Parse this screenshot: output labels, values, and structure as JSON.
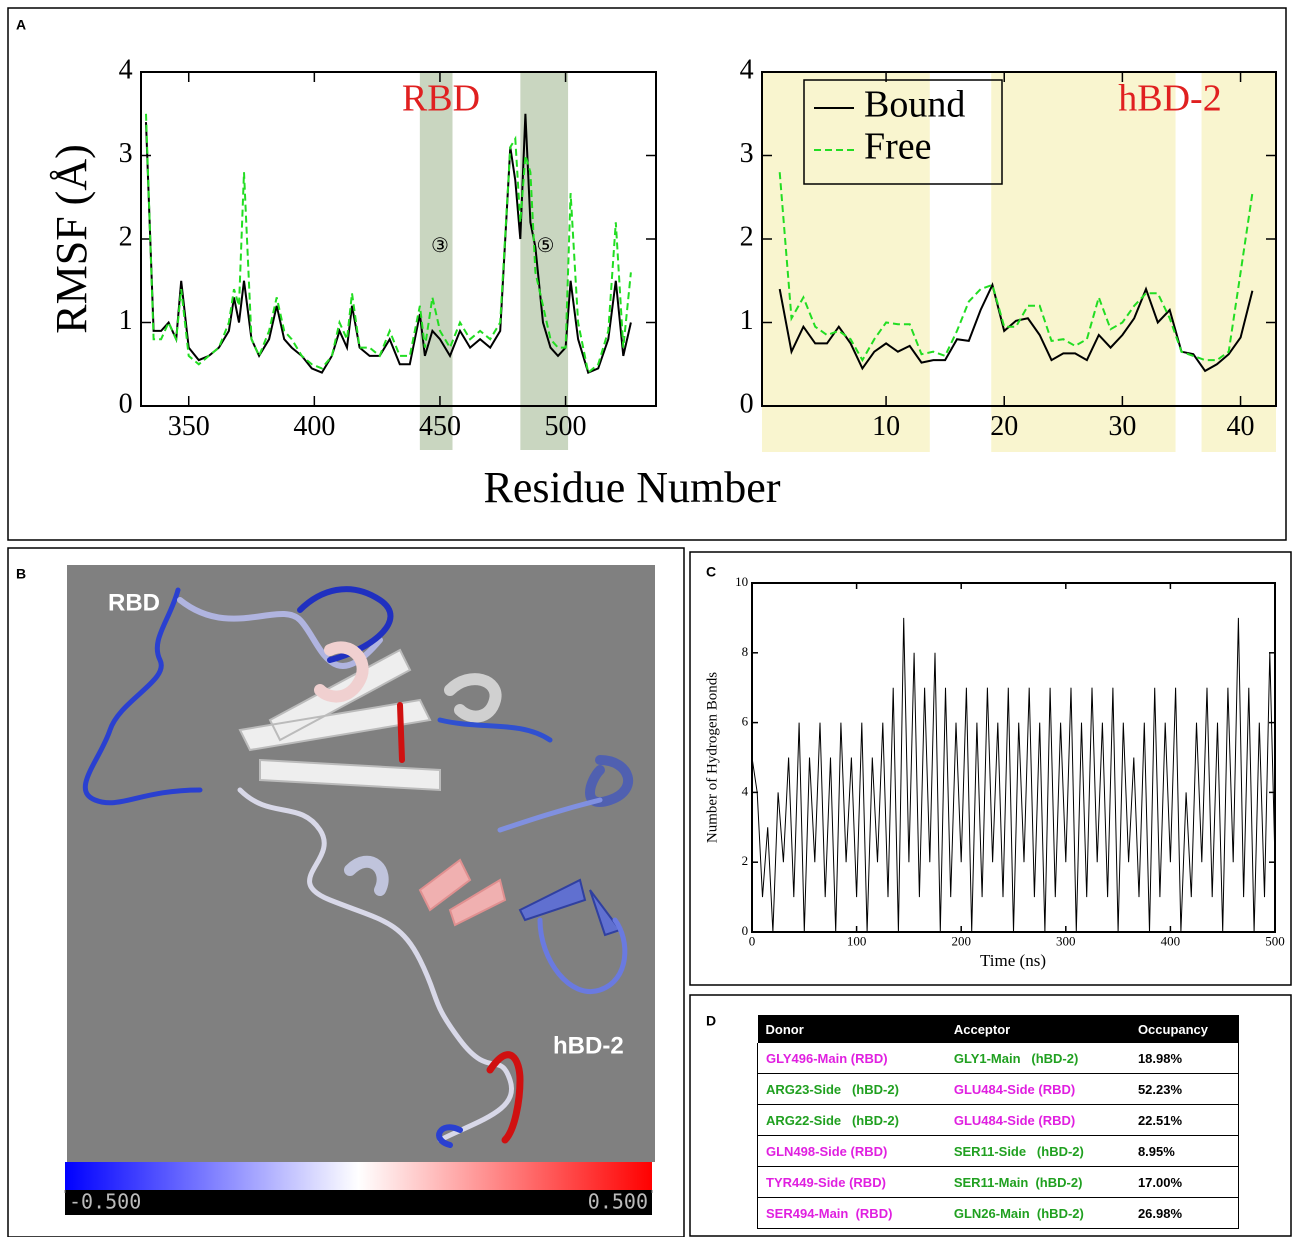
{
  "panel_labels": [
    "A",
    "B",
    "C",
    "D"
  ],
  "structure_labels": [
    "RBD",
    "hBD-2"
  ],
  "chart_data": [
    {
      "type": "line",
      "title": "RBD",
      "ylabel": "RMSF (Å)",
      "xlabel": "Residue Number",
      "x": [
        333,
        336,
        339,
        342,
        345,
        347,
        350,
        354,
        358,
        362,
        366,
        368,
        370,
        372,
        375,
        378,
        382,
        385,
        388,
        391,
        395,
        399,
        403,
        407,
        410,
        413,
        415,
        418,
        422,
        426,
        430,
        434,
        438,
        442,
        444,
        447,
        450,
        454,
        458,
        462,
        466,
        470,
        474,
        478,
        480,
        482,
        484,
        486,
        488,
        491,
        494,
        497,
        500,
        502,
        505,
        509,
        513,
        517,
        520,
        523,
        526
      ],
      "series": [
        {
          "name": "Bound",
          "color": "#000000",
          "dash": false,
          "values": [
            3.4,
            0.9,
            0.9,
            1.0,
            0.8,
            1.5,
            0.7,
            0.55,
            0.6,
            0.7,
            0.9,
            1.3,
            1.0,
            1.5,
            0.8,
            0.6,
            0.8,
            1.2,
            0.8,
            0.7,
            0.6,
            0.45,
            0.4,
            0.6,
            0.9,
            0.7,
            1.2,
            0.7,
            0.6,
            0.6,
            0.8,
            0.5,
            0.5,
            1.1,
            0.6,
            0.9,
            0.8,
            0.6,
            0.9,
            0.7,
            0.8,
            0.7,
            0.9,
            3.1,
            2.7,
            2.0,
            3.5,
            2.2,
            1.9,
            1.0,
            0.7,
            0.6,
            0.7,
            1.5,
            0.8,
            0.4,
            0.45,
            0.8,
            1.5,
            0.6,
            1.0
          ]
        },
        {
          "name": "Free",
          "color": "#22dd22",
          "dash": true,
          "values": [
            3.5,
            0.8,
            0.8,
            1.0,
            0.8,
            1.4,
            0.6,
            0.5,
            0.6,
            0.7,
            1.0,
            1.4,
            1.2,
            2.8,
            0.8,
            0.6,
            0.9,
            1.3,
            0.9,
            0.8,
            0.6,
            0.5,
            0.45,
            0.6,
            1.0,
            0.8,
            1.35,
            0.7,
            0.7,
            0.6,
            0.9,
            0.6,
            0.6,
            1.2,
            0.7,
            1.3,
            0.9,
            0.7,
            1.0,
            0.8,
            0.9,
            0.8,
            1.0,
            3.1,
            3.2,
            2.2,
            3.0,
            2.8,
            1.6,
            1.2,
            0.8,
            0.7,
            0.7,
            2.55,
            1.0,
            0.4,
            0.5,
            0.9,
            2.2,
            0.7,
            1.6
          ]
        }
      ],
      "xlim": [
        331,
        536
      ],
      "xticks": [
        350,
        400,
        450,
        500
      ],
      "ylim": [
        0,
        4
      ],
      "yticks": [
        0,
        1,
        2,
        3,
        4
      ],
      "grid": false,
      "shaded_regions": [
        [
          442,
          455
        ],
        [
          482,
          501
        ]
      ],
      "shade_color": "#c9d6c0",
      "annotations": [
        {
          "text": "③",
          "x": 450,
          "y": 1.9
        },
        {
          "text": "⑤",
          "x": 492,
          "y": 1.9
        }
      ]
    },
    {
      "type": "line",
      "title": "hBD-2",
      "x": [
        1,
        2,
        3,
        4,
        5,
        6,
        7,
        8,
        9,
        10,
        11,
        12,
        13,
        14,
        15,
        16,
        17,
        18,
        19,
        20,
        21,
        22,
        23,
        24,
        25,
        26,
        27,
        28,
        29,
        30,
        31,
        32,
        33,
        34,
        35,
        36,
        37,
        38,
        39,
        40,
        41
      ],
      "series": [
        {
          "name": "Bound",
          "color": "#000000",
          "dash": false,
          "values": [
            1.4,
            0.65,
            0.95,
            0.75,
            0.75,
            0.95,
            0.75,
            0.45,
            0.65,
            0.75,
            0.65,
            0.72,
            0.52,
            0.55,
            0.55,
            0.8,
            0.78,
            1.15,
            1.45,
            0.9,
            1.02,
            1.05,
            0.85,
            0.55,
            0.63,
            0.63,
            0.55,
            0.85,
            0.7,
            0.85,
            1.05,
            1.4,
            1.0,
            1.15,
            0.65,
            0.62,
            0.42,
            0.5,
            0.62,
            0.82,
            1.38
          ]
        },
        {
          "name": "Free",
          "color": "#22dd22",
          "dash": true,
          "values": [
            2.8,
            1.05,
            1.3,
            0.95,
            0.85,
            0.9,
            0.8,
            0.55,
            0.8,
            1.0,
            0.98,
            0.98,
            0.62,
            0.65,
            0.6,
            0.9,
            1.25,
            1.4,
            1.45,
            0.95,
            0.95,
            1.2,
            1.2,
            0.78,
            0.8,
            0.72,
            0.8,
            1.3,
            0.92,
            1.0,
            1.2,
            1.35,
            1.35,
            1.05,
            0.65,
            0.6,
            0.55,
            0.55,
            0.65,
            1.6,
            2.55
          ]
        }
      ],
      "xlim": [
        -0.5,
        43
      ],
      "xticks": [
        10,
        20,
        30,
        40
      ],
      "ylim": [
        0,
        4
      ],
      "yticks": [
        0,
        1,
        2,
        3,
        4
      ],
      "grid": false,
      "legend": "upper left",
      "shaded_regions": [
        [
          -0.5,
          13.7
        ],
        [
          18.9,
          34.5
        ],
        [
          36.7,
          43
        ]
      ],
      "shade_color": "#f9f5cf"
    },
    {
      "type": "line",
      "xlabel": "Time (ns)",
      "ylabel": "Number of Hydrogen Bonds",
      "x": [
        0,
        5,
        10,
        15,
        20,
        25,
        30,
        35,
        40,
        45,
        50,
        55,
        60,
        65,
        70,
        75,
        80,
        85,
        90,
        95,
        100,
        105,
        110,
        115,
        120,
        125,
        130,
        135,
        140,
        145,
        150,
        155,
        160,
        165,
        170,
        175,
        180,
        185,
        190,
        195,
        200,
        205,
        210,
        215,
        220,
        225,
        230,
        235,
        240,
        245,
        250,
        255,
        260,
        265,
        270,
        275,
        280,
        285,
        290,
        295,
        300,
        305,
        310,
        315,
        320,
        325,
        330,
        335,
        340,
        345,
        350,
        355,
        360,
        365,
        370,
        375,
        380,
        385,
        390,
        395,
        400,
        405,
        410,
        415,
        420,
        425,
        430,
        435,
        440,
        445,
        450,
        455,
        460,
        465,
        470,
        475,
        480,
        485,
        490,
        495,
        500
      ],
      "series": [
        {
          "name": "Number of Hydrogen Bonds",
          "color": "#000000",
          "dash": false,
          "values": [
            5,
            4,
            1,
            3,
            0,
            4,
            2,
            5,
            1,
            6,
            0,
            5,
            2,
            6,
            1,
            5,
            0,
            6,
            2,
            5,
            1,
            6,
            0,
            5,
            2,
            6,
            1,
            7,
            0,
            9,
            2,
            8,
            1,
            7,
            2,
            8,
            0,
            7,
            1,
            6,
            2,
            7,
            0,
            6,
            1,
            7,
            2,
            6,
            1,
            7,
            0,
            6,
            2,
            7,
            1,
            6,
            0,
            7,
            1,
            6,
            2,
            7,
            0,
            6,
            1,
            7,
            2,
            6,
            1,
            7,
            0,
            6,
            2,
            5,
            1,
            6,
            0,
            7,
            1,
            6,
            2,
            7,
            0,
            4,
            1,
            6,
            2,
            7,
            1,
            6,
            0,
            7,
            2,
            9,
            1,
            7,
            0,
            6,
            1,
            8,
            2
          ]
        }
      ],
      "xlim": [
        0,
        500
      ],
      "xticks": [
        0,
        100,
        200,
        300,
        400,
        500
      ],
      "ylim": [
        0,
        10
      ],
      "yticks": [
        0,
        2,
        4,
        6,
        8,
        10
      ],
      "grid": false
    },
    {
      "type": "colorbar",
      "clim": [
        -0.5,
        0.5
      ],
      "colors": [
        "#0000ff",
        "#ffffff",
        "#ff0000"
      ],
      "ticks": [
        {
          "value": -0.5,
          "label": "-0.500"
        },
        {
          "value": 0.5,
          "label": "0.500"
        }
      ]
    }
  ],
  "table": {
    "header": [
      "Donor",
      "Acceptor",
      "Occupancy"
    ],
    "rows": [
      [
        {
          "text": "GLY496-Main (RBD)",
          "color": "#e020e0"
        },
        {
          "text": "GLY1-Main   (hBD-2)",
          "color": "#20a020"
        },
        {
          "text": "18.98%",
          "color": "#000000"
        }
      ],
      [
        {
          "text": "ARG23-Side   (hBD-2)",
          "color": "#20a020"
        },
        {
          "text": "GLU484-Side (RBD)",
          "color": "#e020e0"
        },
        {
          "text": "52.23%",
          "color": "#000000"
        }
      ],
      [
        {
          "text": "ARG22-Side   (hBD-2)",
          "color": "#20a020"
        },
        {
          "text": "GLU484-Side (RBD)",
          "color": "#e020e0"
        },
        {
          "text": "22.51%",
          "color": "#000000"
        }
      ],
      [
        {
          "text": "GLN498-Side (RBD)",
          "color": "#e020e0"
        },
        {
          "text": "SER11-Side   (hBD-2)",
          "color": "#20a020"
        },
        {
          "text": "8.95%",
          "color": "#000000"
        }
      ],
      [
        {
          "text": "TYR449-Side (RBD)",
          "color": "#e020e0"
        },
        {
          "text": "SER11-Main  (hBD-2)",
          "color": "#20a020"
        },
        {
          "text": "17.00%",
          "color": "#000000"
        }
      ],
      [
        {
          "text": "SER494-Main  (RBD)",
          "color": "#e020e0"
        },
        {
          "text": "GLN26-Main  (hBD-2)",
          "color": "#20a020"
        },
        {
          "text": "26.98%",
          "color": "#000000"
        }
      ]
    ]
  }
}
